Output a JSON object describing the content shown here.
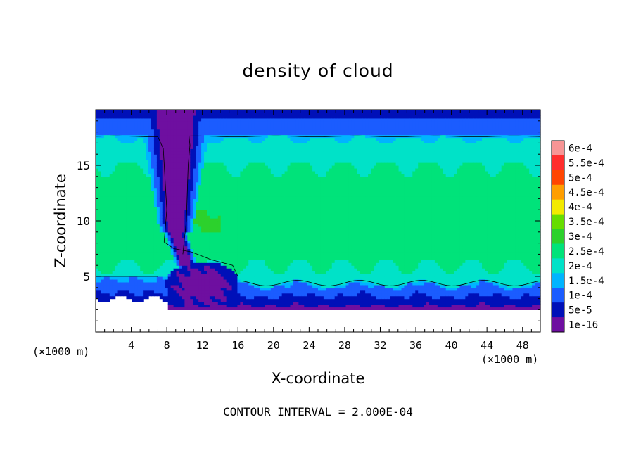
{
  "chart_data": {
    "type": "heatmap",
    "title": "density of cloud",
    "xlabel": "X-coordinate",
    "ylabel": "Z-coordinate",
    "x_unit": "(×1000 m)",
    "xlim": [
      0,
      50
    ],
    "ylim": [
      0,
      20
    ],
    "xticks": [
      4,
      8,
      12,
      16,
      20,
      24,
      28,
      32,
      36,
      40,
      44,
      48
    ],
    "yticks": [
      5,
      10,
      15
    ],
    "colorbar": {
      "labels": [
        "6e-4",
        "5.5e-4",
        "5e-4",
        "4.5e-4",
        "4e-4",
        "3.5e-4",
        "3e-4",
        "2.5e-4",
        "2e-4",
        "1.5e-4",
        "1e-4",
        "5e-5",
        "1e-16"
      ],
      "colors": [
        "#f79595",
        "#ff2d2d",
        "#ff4500",
        "#ff9e00",
        "#f3ea00",
        "#66dd00",
        "#2cd12c",
        "#00e37a",
        "#00e2c8",
        "#00b4ff",
        "#1b5cff",
        "#0010b8",
        "#6e0fa0"
      ]
    },
    "contour_interval": "CONTOUR INTERVAL = 2.000E-04",
    "field": {
      "cloud_top_z": 17.6,
      "cloud_base_z": 4.9,
      "lower_layer_bottom_z": 2.0,
      "upper_core_value": 0.00026,
      "max_core_value": 0.00029,
      "updraft_x": 9.0,
      "updraft_top_width": 3.0,
      "updraft_low_x": 12.0,
      "updraft_low_z": 6.0,
      "anvil_blob_x": [
        2,
        16
      ],
      "clear_region_xmax": 8.0,
      "clear_region_zmax": 3.0
    }
  }
}
